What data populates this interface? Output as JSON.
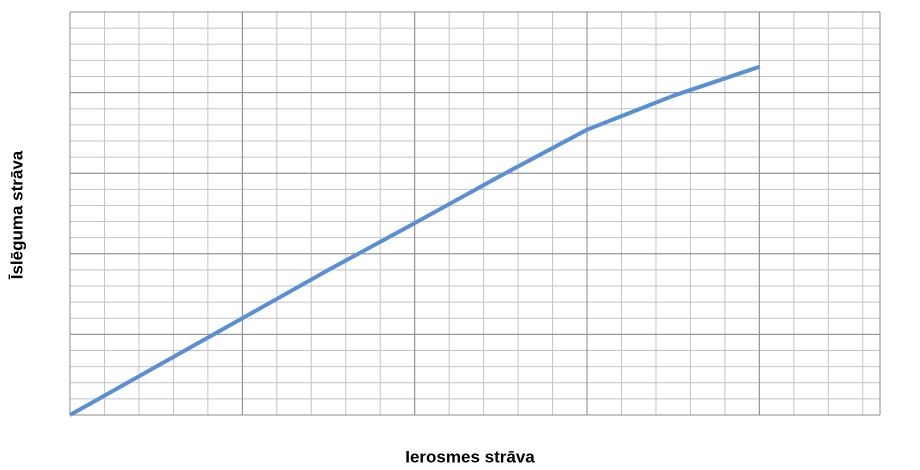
{
  "chart_data": {
    "type": "line",
    "xlabel": "Ierosmes strāva",
    "ylabel": "Īslēguma  strāva",
    "x": [
      0,
      0.5,
      1,
      1.5,
      2,
      2.5,
      3,
      3.5,
      4
    ],
    "series": [
      {
        "name": null,
        "color": "#5b8fd4",
        "values": [
          0,
          0.6,
          1.2,
          1.8,
          2.38,
          2.97,
          3.54,
          3.96,
          4.32
        ]
      }
    ],
    "xlim": [
      0,
      4.7
    ],
    "ylim": [
      0,
      5
    ],
    "xticks": [
      0,
      1,
      2,
      3,
      4
    ],
    "yticks": [
      0,
      1,
      2,
      3,
      4,
      5
    ],
    "grid": true,
    "minor_divisions": 5
  }
}
